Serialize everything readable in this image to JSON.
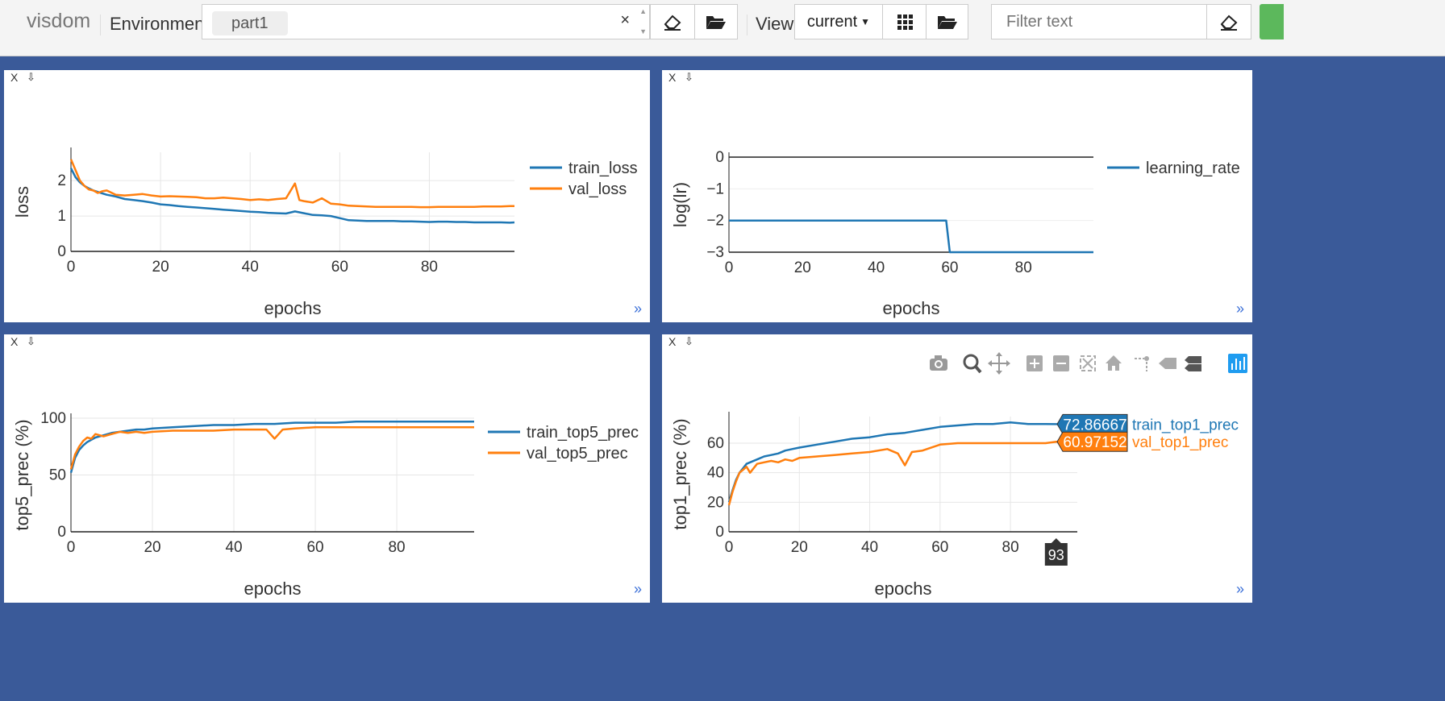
{
  "header": {
    "brand": "visdom",
    "env_label": "Environment",
    "env_chip": "part1",
    "clear_glyph": "×",
    "view_label": "View",
    "view_value": "current",
    "filter_placeholder": "Filter text",
    "icons": [
      "eraser-icon",
      "folder-icon",
      "grid-icon",
      "folder-icon",
      "eraser-icon"
    ]
  },
  "panes": [
    {
      "close_label": "X",
      "expand_label": "»"
    },
    {
      "close_label": "X",
      "expand_label": "»"
    },
    {
      "close_label": "X",
      "expand_label": "»"
    },
    {
      "close_label": "X",
      "expand_label": "»"
    }
  ],
  "colors": {
    "series1": "#1f77b4",
    "series2": "#ff7f0e"
  },
  "chart_data": [
    {
      "type": "line",
      "xlabel": "epochs",
      "ylabel": "loss",
      "xlim": [
        0,
        99
      ],
      "ylim": [
        0,
        2.8
      ],
      "xticks": [
        0,
        20,
        40,
        60,
        80
      ],
      "yticks": [
        0,
        1,
        2
      ],
      "grid": true,
      "legend": "right",
      "series": [
        {
          "name": "train_loss",
          "x": [
            0,
            1,
            2,
            3,
            4,
            5,
            6,
            7,
            8,
            10,
            12,
            14,
            16,
            18,
            20,
            22,
            24,
            26,
            28,
            30,
            32,
            34,
            36,
            38,
            40,
            42,
            44,
            46,
            48,
            50,
            52,
            54,
            56,
            58,
            60,
            62,
            64,
            66,
            68,
            70,
            72,
            74,
            76,
            78,
            80,
            82,
            84,
            86,
            88,
            90,
            92,
            94,
            96,
            98,
            99
          ],
          "y": [
            2.35,
            2.1,
            1.95,
            1.85,
            1.78,
            1.72,
            1.68,
            1.64,
            1.6,
            1.55,
            1.48,
            1.45,
            1.42,
            1.38,
            1.33,
            1.31,
            1.28,
            1.26,
            1.24,
            1.22,
            1.2,
            1.18,
            1.16,
            1.14,
            1.12,
            1.11,
            1.09,
            1.08,
            1.07,
            1.13,
            1.08,
            1.03,
            1.02,
            1.0,
            0.94,
            0.88,
            0.87,
            0.86,
            0.86,
            0.86,
            0.86,
            0.85,
            0.85,
            0.84,
            0.83,
            0.84,
            0.84,
            0.83,
            0.83,
            0.82,
            0.82,
            0.82,
            0.82,
            0.81,
            0.82
          ]
        },
        {
          "name": "val_loss",
          "x": [
            0,
            1,
            2,
            3,
            4,
            5,
            6,
            7,
            8,
            10,
            12,
            14,
            16,
            18,
            20,
            22,
            24,
            26,
            28,
            30,
            32,
            34,
            36,
            38,
            40,
            42,
            44,
            46,
            48,
            50,
            51,
            52,
            54,
            56,
            58,
            60,
            62,
            64,
            66,
            68,
            70,
            72,
            74,
            76,
            78,
            80,
            82,
            84,
            86,
            88,
            90,
            92,
            94,
            96,
            98,
            99
          ],
          "y": [
            2.6,
            2.3,
            2.0,
            1.85,
            1.75,
            1.72,
            1.65,
            1.7,
            1.72,
            1.6,
            1.58,
            1.6,
            1.62,
            1.58,
            1.55,
            1.56,
            1.55,
            1.54,
            1.53,
            1.5,
            1.5,
            1.52,
            1.5,
            1.48,
            1.45,
            1.47,
            1.45,
            1.48,
            1.5,
            1.92,
            1.45,
            1.42,
            1.38,
            1.5,
            1.35,
            1.33,
            1.29,
            1.28,
            1.27,
            1.26,
            1.26,
            1.26,
            1.26,
            1.26,
            1.25,
            1.25,
            1.26,
            1.26,
            1.26,
            1.26,
            1.26,
            1.27,
            1.27,
            1.27,
            1.28,
            1.28
          ]
        }
      ]
    },
    {
      "type": "line",
      "xlabel": "epochs",
      "ylabel": "log(lr)",
      "xlim": [
        0,
        99
      ],
      "ylim": [
        -3,
        0
      ],
      "xticks": [
        0,
        20,
        40,
        60,
        80
      ],
      "yticks": [
        0,
        -1,
        -2,
        -3
      ],
      "ytick_labels": [
        "0",
        "−1",
        "−2",
        "−3"
      ],
      "grid": false,
      "legend": "right",
      "series": [
        {
          "name": "learning_rate",
          "x": [
            0,
            1,
            59,
            60,
            99
          ],
          "y": [
            -2,
            -2,
            -2,
            -3,
            -3
          ]
        }
      ]
    },
    {
      "type": "line",
      "xlabel": "epochs",
      "ylabel": "top5_prec (%)",
      "xlim": [
        0,
        99
      ],
      "ylim": [
        0,
        100
      ],
      "xticks": [
        0,
        20,
        40,
        60,
        80
      ],
      "yticks": [
        0,
        50,
        100
      ],
      "grid": true,
      "legend": "right",
      "series": [
        {
          "name": "train_top5_prec",
          "x": [
            0,
            1,
            2,
            3,
            4,
            5,
            6,
            8,
            10,
            12,
            14,
            16,
            18,
            20,
            25,
            30,
            35,
            40,
            45,
            50,
            55,
            60,
            65,
            70,
            75,
            80,
            85,
            90,
            95,
            99
          ],
          "y": [
            52,
            65,
            72,
            76,
            79,
            81,
            83,
            85,
            87,
            88,
            89,
            90,
            90,
            91,
            92,
            93,
            94,
            94,
            95,
            95,
            96,
            96,
            96,
            97,
            97,
            97,
            97,
            97,
            97,
            97
          ]
        },
        {
          "name": "val_top5_prec",
          "x": [
            0,
            1,
            2,
            3,
            4,
            5,
            6,
            8,
            10,
            12,
            14,
            16,
            18,
            20,
            25,
            30,
            35,
            40,
            45,
            48,
            50,
            52,
            55,
            60,
            65,
            70,
            75,
            80,
            85,
            90,
            95,
            99
          ],
          "y": [
            55,
            68,
            75,
            80,
            83,
            82,
            86,
            84,
            86,
            88,
            87,
            88,
            87,
            88,
            89,
            89,
            89,
            90,
            90,
            90,
            82,
            90,
            91,
            92,
            92,
            92,
            92,
            92,
            92,
            92,
            92,
            92
          ]
        }
      ]
    },
    {
      "type": "line",
      "xlabel": "epochs",
      "ylabel": "top1_prec (%)",
      "xlim": [
        0,
        99
      ],
      "ylim": [
        0,
        78
      ],
      "xticks": [
        0,
        20,
        40,
        60,
        80
      ],
      "yticks": [
        0,
        20,
        40,
        60
      ],
      "grid": true,
      "legend": "right",
      "series": [
        {
          "name": "train_top1_prec",
          "x": [
            0,
            1,
            2,
            3,
            4,
            5,
            6,
            8,
            10,
            12,
            14,
            16,
            18,
            20,
            25,
            30,
            35,
            40,
            45,
            50,
            55,
            60,
            65,
            70,
            75,
            80,
            85,
            90,
            93,
            95,
            99
          ],
          "y": [
            20,
            28,
            35,
            40,
            43,
            46,
            47,
            49,
            51,
            52,
            53,
            55,
            56,
            57,
            59,
            61,
            63,
            64,
            66,
            67,
            69,
            71,
            72,
            73,
            73,
            74,
            73,
            73,
            72.86667,
            73,
            73
          ]
        },
        {
          "name": "val_top1_prec",
          "x": [
            0,
            1,
            2,
            3,
            4,
            5,
            6,
            8,
            10,
            12,
            14,
            16,
            18,
            20,
            25,
            30,
            35,
            40,
            45,
            48,
            50,
            52,
            55,
            60,
            65,
            70,
            75,
            80,
            85,
            90,
            93,
            95,
            99
          ],
          "y": [
            18,
            27,
            34,
            40,
            42,
            44,
            40,
            46,
            47,
            48,
            47,
            49,
            48,
            50,
            51,
            52,
            53,
            54,
            56,
            53,
            45,
            54,
            55,
            59,
            60,
            60,
            60,
            60,
            60,
            60,
            60.97152,
            61,
            61
          ]
        }
      ],
      "hover": {
        "x_label": "93",
        "values": [
          "72.86667",
          "60.97152"
        ]
      }
    }
  ]
}
